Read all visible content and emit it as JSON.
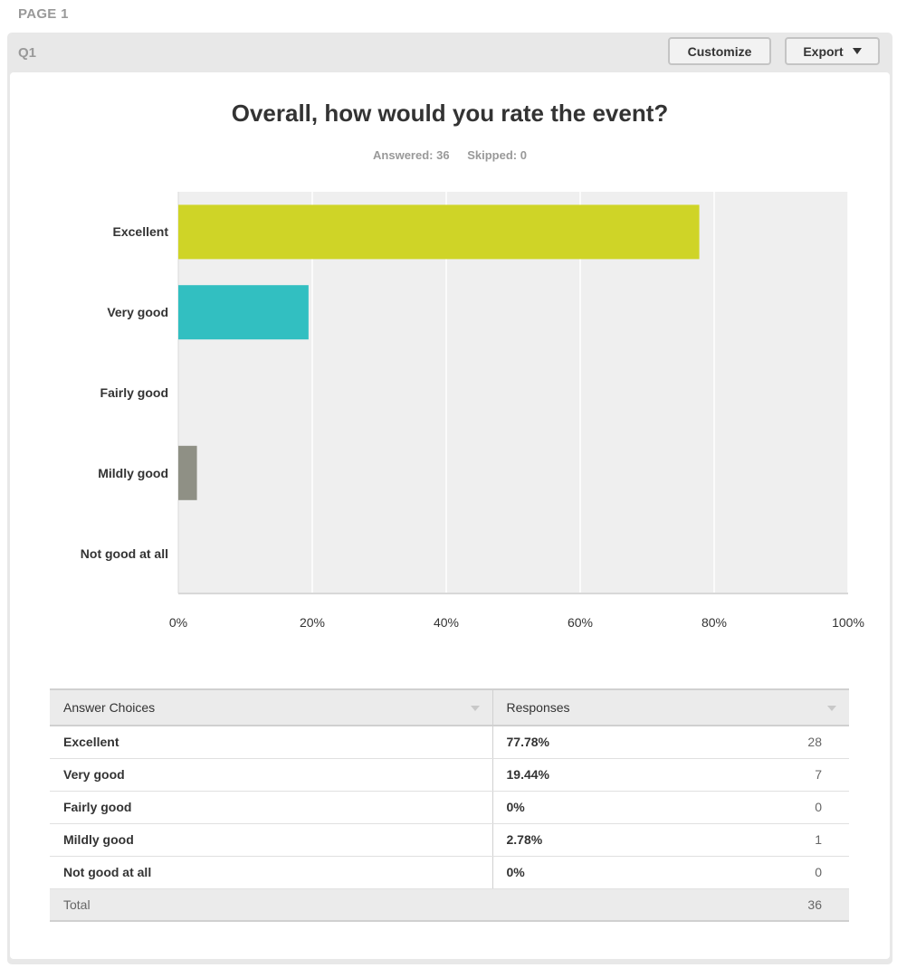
{
  "page_label": "PAGE 1",
  "question": {
    "id": "Q1",
    "customize_label": "Customize",
    "export_label": "Export"
  },
  "summary": {
    "answered": "Answered: 36",
    "skipped": "Skipped: 0"
  },
  "chart_data": {
    "type": "bar",
    "orientation": "horizontal",
    "title": "Overall, how would you rate the event?",
    "categories": [
      "Excellent",
      "Very good",
      "Fairly good",
      "Mildly good",
      "Not good at all"
    ],
    "values": [
      77.78,
      19.44,
      0,
      2.78,
      0
    ],
    "colors": [
      "#cfd427",
      "#32bfc1",
      "#a0a0a0",
      "#8f9085",
      "#a0a0a0"
    ],
    "xlim": [
      0,
      100
    ],
    "x_ticks": [
      "0%",
      "20%",
      "40%",
      "60%",
      "80%",
      "100%"
    ],
    "grid": true,
    "xlabel": "",
    "ylabel": ""
  },
  "table": {
    "headers": [
      "Answer Choices",
      "Responses"
    ],
    "rows": [
      {
        "choice": "Excellent",
        "percent": "77.78%",
        "count": "28"
      },
      {
        "choice": "Very good",
        "percent": "19.44%",
        "count": "7"
      },
      {
        "choice": "Fairly good",
        "percent": "0%",
        "count": "0"
      },
      {
        "choice": "Mildly good",
        "percent": "2.78%",
        "count": "1"
      },
      {
        "choice": "Not good at all",
        "percent": "0%",
        "count": "0"
      }
    ],
    "total_label": "Total",
    "total_count": "36"
  }
}
